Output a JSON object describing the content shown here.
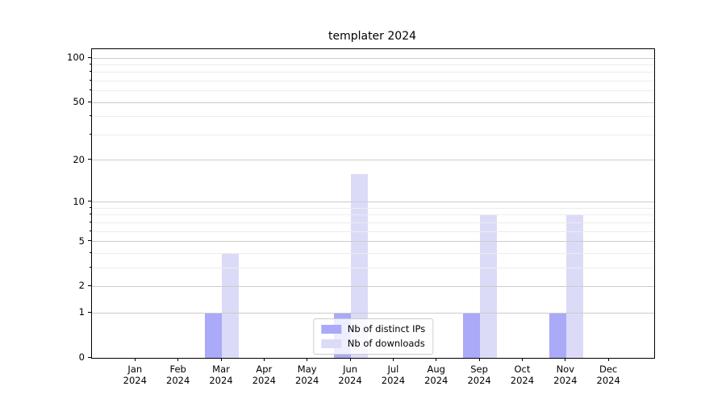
{
  "chart_data": {
    "type": "bar",
    "title": "templater 2024",
    "categories": [
      "Jan",
      "Feb",
      "Mar",
      "Apr",
      "May",
      "Jun",
      "Jul",
      "Aug",
      "Sep",
      "Oct",
      "Nov",
      "Dec"
    ],
    "category_year": "2024",
    "series": [
      {
        "name": "Nb of distinct IPs",
        "color": "#aaaaf8",
        "values": [
          0,
          0,
          1,
          0,
          0,
          1,
          0,
          0,
          1,
          0,
          1,
          0
        ]
      },
      {
        "name": "Nb of downloads",
        "color": "#dbdbf8",
        "values": [
          0,
          0,
          4,
          0,
          0,
          16,
          0,
          0,
          8,
          0,
          8,
          0
        ]
      }
    ],
    "xlabel": "",
    "ylabel": "",
    "yscale": "log1p",
    "ylim": [
      0,
      115
    ],
    "y_ticks_major": [
      0,
      1,
      2,
      5,
      10,
      20,
      50,
      100
    ],
    "y_ticks_minor": [
      3,
      4,
      6,
      7,
      8,
      9,
      30,
      40,
      60,
      70,
      80,
      90
    ],
    "grid": "on",
    "grid_on_top_of_bars": true,
    "legend_position": "lower center",
    "colors": {
      "grid_major": "#cccccc",
      "grid_minor": "#ececec",
      "spine": "#000000",
      "text": "#000000",
      "background": "#ffffff"
    }
  }
}
